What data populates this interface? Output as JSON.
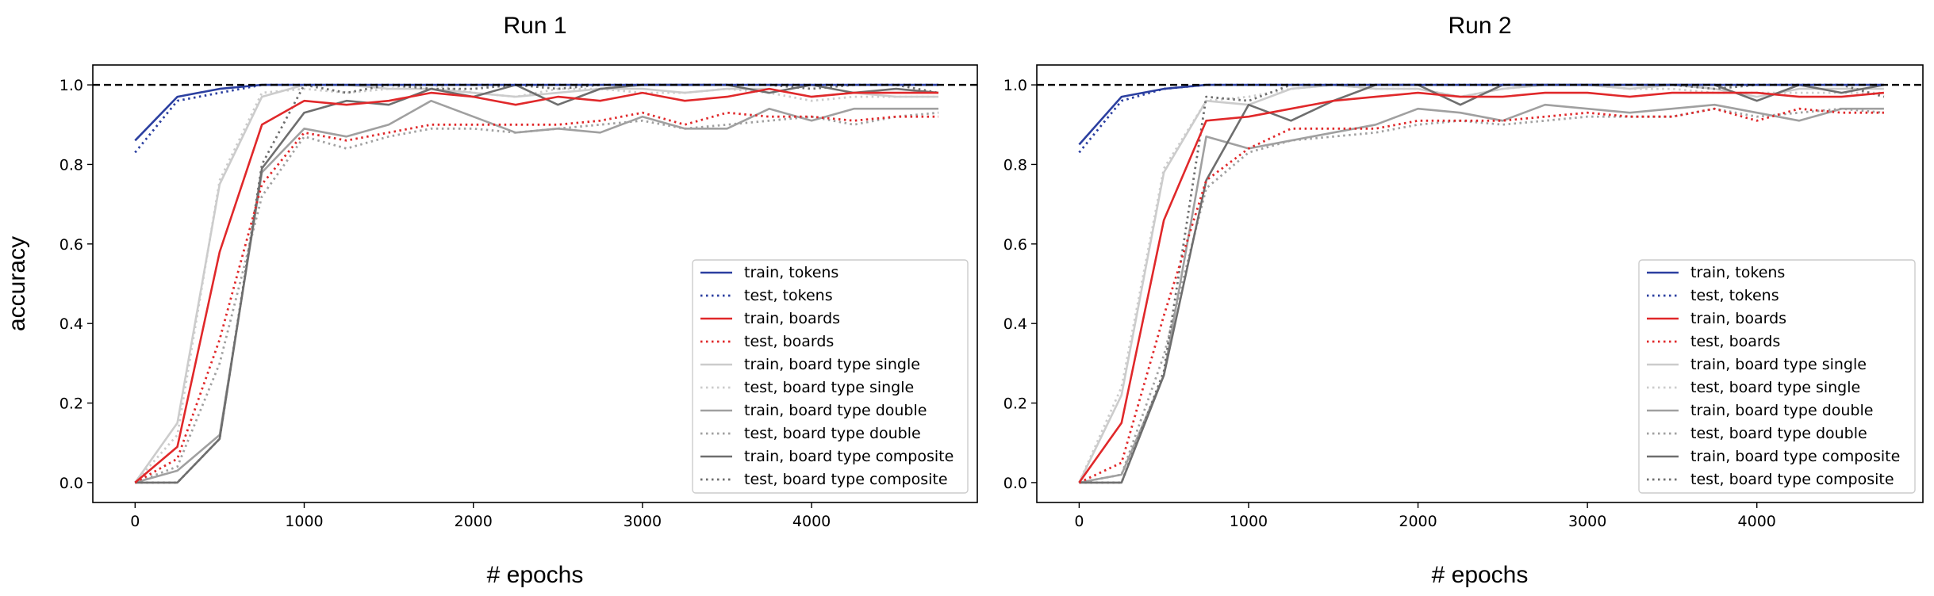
{
  "chart_data": [
    {
      "type": "line",
      "title": "Run 1",
      "xlabel": "# epochs",
      "ylabel": "accuracy",
      "xlim": [
        -250,
        4980
      ],
      "ylim": [
        -0.05,
        1.05
      ],
      "xticks": [
        0,
        1000,
        2000,
        3000,
        4000
      ],
      "yticks": [
        0.0,
        0.2,
        0.4,
        0.6,
        0.8,
        1.0
      ],
      "xtick_labels": [
        "0",
        "1000",
        "2000",
        "3000",
        "4000"
      ],
      "ytick_labels": [
        "0.0",
        "0.2",
        "0.4",
        "0.6",
        "0.8",
        "1.0"
      ],
      "reference_line": 1.0,
      "legend_position": "lower-right",
      "x": [
        0,
        250,
        500,
        750,
        1000,
        1250,
        1500,
        1750,
        2000,
        2250,
        2500,
        2750,
        3000,
        3250,
        3500,
        3750,
        4000,
        4250,
        4500,
        4750
      ],
      "series": [
        {
          "name": "train, tokens",
          "color": "#2b3fa0",
          "style": "solid",
          "values": [
            0.86,
            0.97,
            0.99,
            1.0,
            1.0,
            1.0,
            1.0,
            1.0,
            1.0,
            1.0,
            1.0,
            1.0,
            1.0,
            1.0,
            1.0,
            1.0,
            1.0,
            1.0,
            1.0,
            1.0
          ]
        },
        {
          "name": "test, tokens",
          "color": "#2b3fa0",
          "style": "dotted",
          "values": [
            0.83,
            0.96,
            0.98,
            1.0,
            1.0,
            1.0,
            1.0,
            1.0,
            1.0,
            1.0,
            1.0,
            1.0,
            1.0,
            1.0,
            1.0,
            1.0,
            1.0,
            1.0,
            1.0,
            1.0
          ]
        },
        {
          "name": "train, boards",
          "color": "#e0282a",
          "style": "solid",
          "values": [
            0.0,
            0.09,
            0.58,
            0.9,
            0.96,
            0.95,
            0.96,
            0.98,
            0.97,
            0.95,
            0.97,
            0.96,
            0.98,
            0.96,
            0.97,
            0.99,
            0.97,
            0.98,
            0.98,
            0.98
          ]
        },
        {
          "name": "test, boards",
          "color": "#e0282a",
          "style": "dotted",
          "values": [
            0.0,
            0.06,
            0.36,
            0.75,
            0.88,
            0.86,
            0.88,
            0.9,
            0.9,
            0.9,
            0.9,
            0.91,
            0.93,
            0.9,
            0.93,
            0.92,
            0.92,
            0.91,
            0.92,
            0.92
          ]
        },
        {
          "name": "train, board type single",
          "color": "#cccccc",
          "style": "solid",
          "values": [
            0.0,
            0.15,
            0.75,
            0.97,
            1.0,
            1.0,
            0.99,
            0.99,
            0.98,
            0.97,
            0.98,
            0.99,
            0.99,
            0.98,
            0.99,
            0.99,
            0.97,
            0.98,
            0.97,
            0.97
          ]
        },
        {
          "name": "test, board type single",
          "color": "#cccccc",
          "style": "dotted",
          "values": [
            0.0,
            0.12,
            0.76,
            0.98,
            0.99,
            0.98,
            0.99,
            1.0,
            0.98,
            0.97,
            0.99,
            0.99,
            0.98,
            0.98,
            0.99,
            0.98,
            0.96,
            0.97,
            0.97,
            0.97
          ]
        },
        {
          "name": "train, board type double",
          "color": "#a0a0a0",
          "style": "solid",
          "values": [
            0.0,
            0.03,
            0.12,
            0.78,
            0.89,
            0.87,
            0.9,
            0.96,
            0.92,
            0.88,
            0.89,
            0.88,
            0.92,
            0.89,
            0.89,
            0.94,
            0.91,
            0.94,
            0.94,
            0.94
          ]
        },
        {
          "name": "test, board type double",
          "color": "#a0a0a0",
          "style": "dotted",
          "values": [
            0.0,
            0.04,
            0.3,
            0.72,
            0.87,
            0.84,
            0.87,
            0.89,
            0.89,
            0.88,
            0.89,
            0.9,
            0.91,
            0.89,
            0.9,
            0.91,
            0.92,
            0.9,
            0.92,
            0.93
          ]
        },
        {
          "name": "train, board type composite",
          "color": "#6e6e6e",
          "style": "solid",
          "values": [
            0.0,
            0.0,
            0.11,
            0.79,
            0.93,
            0.96,
            0.95,
            0.99,
            0.97,
            1.0,
            0.95,
            0.99,
            1.0,
            1.0,
            1.0,
            0.98,
            1.0,
            0.98,
            0.99,
            0.98
          ]
        },
        {
          "name": "test, board type composite",
          "color": "#6e6e6e",
          "style": "dotted",
          "values": [
            0.0,
            0.0,
            0.11,
            0.8,
            1.0,
            0.98,
            1.0,
            0.99,
            0.99,
            1.0,
            0.99,
            1.0,
            1.0,
            1.0,
            1.0,
            1.0,
            0.99,
            1.0,
            1.0,
            0.98
          ]
        }
      ]
    },
    {
      "type": "line",
      "title": "Run 2",
      "xlabel": "# epochs",
      "ylabel": "",
      "xlim": [
        -250,
        4980
      ],
      "ylim": [
        -0.05,
        1.05
      ],
      "xticks": [
        0,
        1000,
        2000,
        3000,
        4000
      ],
      "yticks": [
        0.0,
        0.2,
        0.4,
        0.6,
        0.8,
        1.0
      ],
      "xtick_labels": [
        "0",
        "1000",
        "2000",
        "3000",
        "4000"
      ],
      "ytick_labels": [
        "0.0",
        "0.2",
        "0.4",
        "0.6",
        "0.8",
        "1.0"
      ],
      "reference_line": 1.0,
      "legend_position": "lower-right",
      "x": [
        0,
        250,
        500,
        750,
        1000,
        1250,
        1500,
        1750,
        2000,
        2250,
        2500,
        2750,
        3000,
        3250,
        3500,
        3750,
        4000,
        4250,
        4500,
        4750
      ],
      "series": [
        {
          "name": "train, tokens",
          "color": "#2b3fa0",
          "style": "solid",
          "values": [
            0.85,
            0.97,
            0.99,
            1.0,
            1.0,
            1.0,
            1.0,
            1.0,
            1.0,
            1.0,
            1.0,
            1.0,
            1.0,
            1.0,
            1.0,
            1.0,
            1.0,
            1.0,
            1.0,
            1.0
          ]
        },
        {
          "name": "test, tokens",
          "color": "#2b3fa0",
          "style": "dotted",
          "values": [
            0.83,
            0.96,
            0.99,
            1.0,
            1.0,
            1.0,
            1.0,
            1.0,
            1.0,
            1.0,
            1.0,
            1.0,
            1.0,
            1.0,
            1.0,
            1.0,
            1.0,
            1.0,
            1.0,
            1.0
          ]
        },
        {
          "name": "train, boards",
          "color": "#e0282a",
          "style": "solid",
          "values": [
            0.0,
            0.15,
            0.66,
            0.91,
            0.92,
            0.94,
            0.96,
            0.97,
            0.98,
            0.97,
            0.97,
            0.98,
            0.98,
            0.97,
            0.98,
            0.98,
            0.98,
            0.97,
            0.97,
            0.98
          ]
        },
        {
          "name": "test, boards",
          "color": "#e0282a",
          "style": "dotted",
          "values": [
            0.0,
            0.05,
            0.42,
            0.76,
            0.84,
            0.89,
            0.89,
            0.89,
            0.91,
            0.91,
            0.91,
            0.92,
            0.93,
            0.92,
            0.92,
            0.94,
            0.91,
            0.94,
            0.93,
            0.93
          ]
        },
        {
          "name": "train, board type single",
          "color": "#cccccc",
          "style": "solid",
          "values": [
            0.0,
            0.22,
            0.78,
            0.96,
            0.95,
            0.99,
            1.0,
            0.99,
            0.99,
            0.97,
            0.99,
            1.0,
            1.0,
            0.99,
            1.0,
            0.99,
            0.97,
            0.99,
            0.99,
            0.99
          ]
        },
        {
          "name": "test, board type single",
          "color": "#cccccc",
          "style": "dotted",
          "values": [
            0.0,
            0.24,
            0.79,
            0.96,
            0.97,
            0.99,
            1.0,
            0.99,
            0.99,
            0.97,
            0.99,
            1.0,
            1.0,
            0.99,
            0.99,
            0.98,
            0.98,
            0.98,
            0.98,
            0.98
          ]
        },
        {
          "name": "train, board type double",
          "color": "#a0a0a0",
          "style": "solid",
          "values": [
            0.0,
            0.02,
            0.27,
            0.87,
            0.84,
            0.86,
            0.88,
            0.9,
            0.94,
            0.93,
            0.91,
            0.95,
            0.94,
            0.93,
            0.94,
            0.95,
            0.93,
            0.91,
            0.94,
            0.94
          ]
        },
        {
          "name": "test, board type double",
          "color": "#a0a0a0",
          "style": "dotted",
          "values": [
            0.0,
            0.02,
            0.32,
            0.74,
            0.83,
            0.86,
            0.87,
            0.88,
            0.9,
            0.91,
            0.9,
            0.91,
            0.92,
            0.92,
            0.92,
            0.94,
            0.92,
            0.93,
            0.94,
            0.93
          ]
        },
        {
          "name": "train, board type composite",
          "color": "#6e6e6e",
          "style": "solid",
          "values": [
            0.0,
            0.0,
            0.27,
            0.76,
            0.95,
            0.91,
            0.96,
            1.0,
            1.0,
            0.95,
            1.0,
            1.0,
            1.0,
            1.0,
            1.0,
            1.0,
            0.96,
            1.0,
            0.98,
            1.0
          ]
        },
        {
          "name": "test, board type composite",
          "color": "#6e6e6e",
          "style": "dotted",
          "values": [
            0.0,
            0.0,
            0.28,
            0.97,
            0.96,
            1.0,
            1.0,
            1.0,
            1.0,
            1.0,
            1.0,
            1.0,
            1.0,
            1.0,
            1.0,
            0.99,
            1.0,
            1.0,
            1.0,
            0.97
          ]
        }
      ]
    }
  ]
}
